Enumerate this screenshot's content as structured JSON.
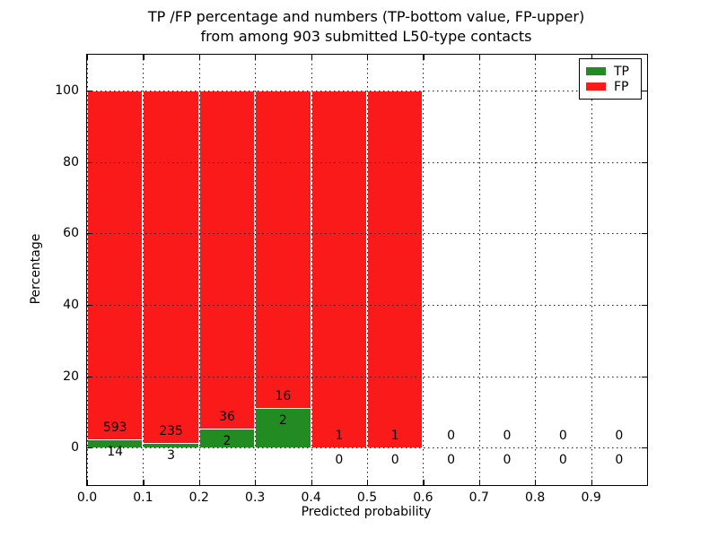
{
  "chart_data": {
    "type": "bar",
    "subtype": "stacked-percentage-histogram",
    "title_line1": "TP /FP percentage and numbers (TP-bottom value, FP-upper)",
    "title_line2": "from among 903 submitted L50-type contacts",
    "xlabel": "Predicted probability",
    "ylabel": "Percentage",
    "xlim": [
      0.0,
      1.0
    ],
    "ylim": [
      -10.5,
      110.0
    ],
    "bin_width": 0.1,
    "bin_starts": [
      0.0,
      0.1,
      0.2,
      0.3,
      0.4,
      0.5,
      0.6,
      0.7,
      0.8,
      0.9
    ],
    "series": [
      {
        "name": "TP",
        "color": "#228B22",
        "counts": [
          14,
          3,
          2,
          2,
          0,
          0,
          0,
          0,
          0,
          0
        ]
      },
      {
        "name": "FP",
        "color": "#FB1A1A",
        "counts": [
          593,
          235,
          36,
          16,
          1,
          1,
          0,
          0,
          0,
          0
        ]
      }
    ],
    "bar_total_height_pct": 100,
    "xticks": [
      "0.0",
      "0.1",
      "0.2",
      "0.3",
      "0.4",
      "0.5",
      "0.6",
      "0.7",
      "0.8",
      "0.9"
    ],
    "yticks": [
      "0",
      "20",
      "40",
      "60",
      "80",
      "100"
    ],
    "grid": "dotted",
    "legend": {
      "position": "upper-right",
      "entries": [
        {
          "label": "TP",
          "color": "#228B22"
        },
        {
          "label": "FP",
          "color": "#FB1A1A"
        }
      ]
    }
  }
}
